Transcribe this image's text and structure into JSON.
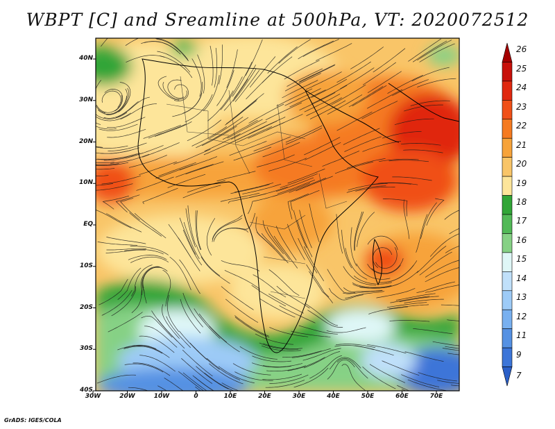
{
  "title": "WBPT [C] and Sreamline at 500hPa, VT: 2020072512",
  "credit": "GrADS: IGES/COLA",
  "lat_labels": [
    "40N",
    "30N",
    "20N",
    "10N",
    "EQ",
    "10S",
    "20S",
    "30S",
    "40S"
  ],
  "lon_labels": [
    "30W",
    "20W",
    "10W",
    "0",
    "10E",
    "20E",
    "30E",
    "40E",
    "50E",
    "60E",
    "70E"
  ],
  "colorbar": {
    "labels": [
      "26",
      "25",
      "24",
      "23",
      "22",
      "21",
      "20",
      "19",
      "18",
      "17",
      "16",
      "15",
      "14",
      "13",
      "12",
      "11",
      "9",
      "7"
    ],
    "colors": [
      "#a50000",
      "#c8100a",
      "#e0280f",
      "#f05018",
      "#f57a20",
      "#f7a33a",
      "#f9c568",
      "#fde59a",
      "#31a537",
      "#52b957",
      "#86d185",
      "#dff7f7",
      "#c0e0fa",
      "#9dcbf7",
      "#78b0f0",
      "#5591e3",
      "#3c75d8",
      "#2a5fc8"
    ]
  },
  "map_legend": {
    "field": "WBPT",
    "units": "C",
    "level": "500hPa",
    "overlay": "Streamline"
  }
}
